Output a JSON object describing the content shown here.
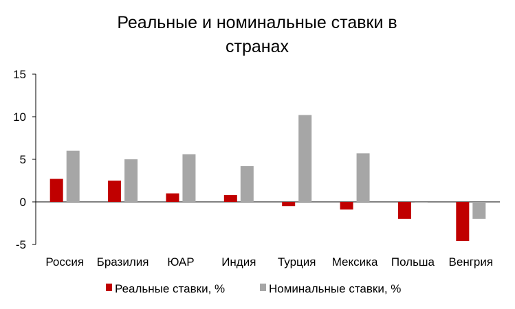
{
  "chart_data": {
    "type": "bar",
    "title_lines": [
      "Реальные и номинальные ставки в",
      "странах"
    ],
    "categories": [
      "Россия",
      "Бразилия",
      "ЮАР",
      "Индия",
      "Турция",
      "Мексика",
      "Польша",
      "Венгрия"
    ],
    "series": [
      {
        "name": "Реальные ставки, %",
        "color": "#C00000",
        "values": [
          2.7,
          2.5,
          1.0,
          0.8,
          -0.5,
          -0.9,
          -2.0,
          -4.6
        ]
      },
      {
        "name": "Номинальные ставки, %",
        "color": "#A6A6A6",
        "values": [
          6.0,
          5.0,
          5.6,
          4.2,
          10.2,
          5.7,
          -0.1,
          -2.0
        ]
      }
    ],
    "ylim": [
      -5,
      15
    ],
    "yticks": [
      "-5",
      "0",
      "5",
      "10",
      "15"
    ],
    "xlabel": "",
    "ylabel": "",
    "grid": false,
    "legend_position": "bottom"
  }
}
